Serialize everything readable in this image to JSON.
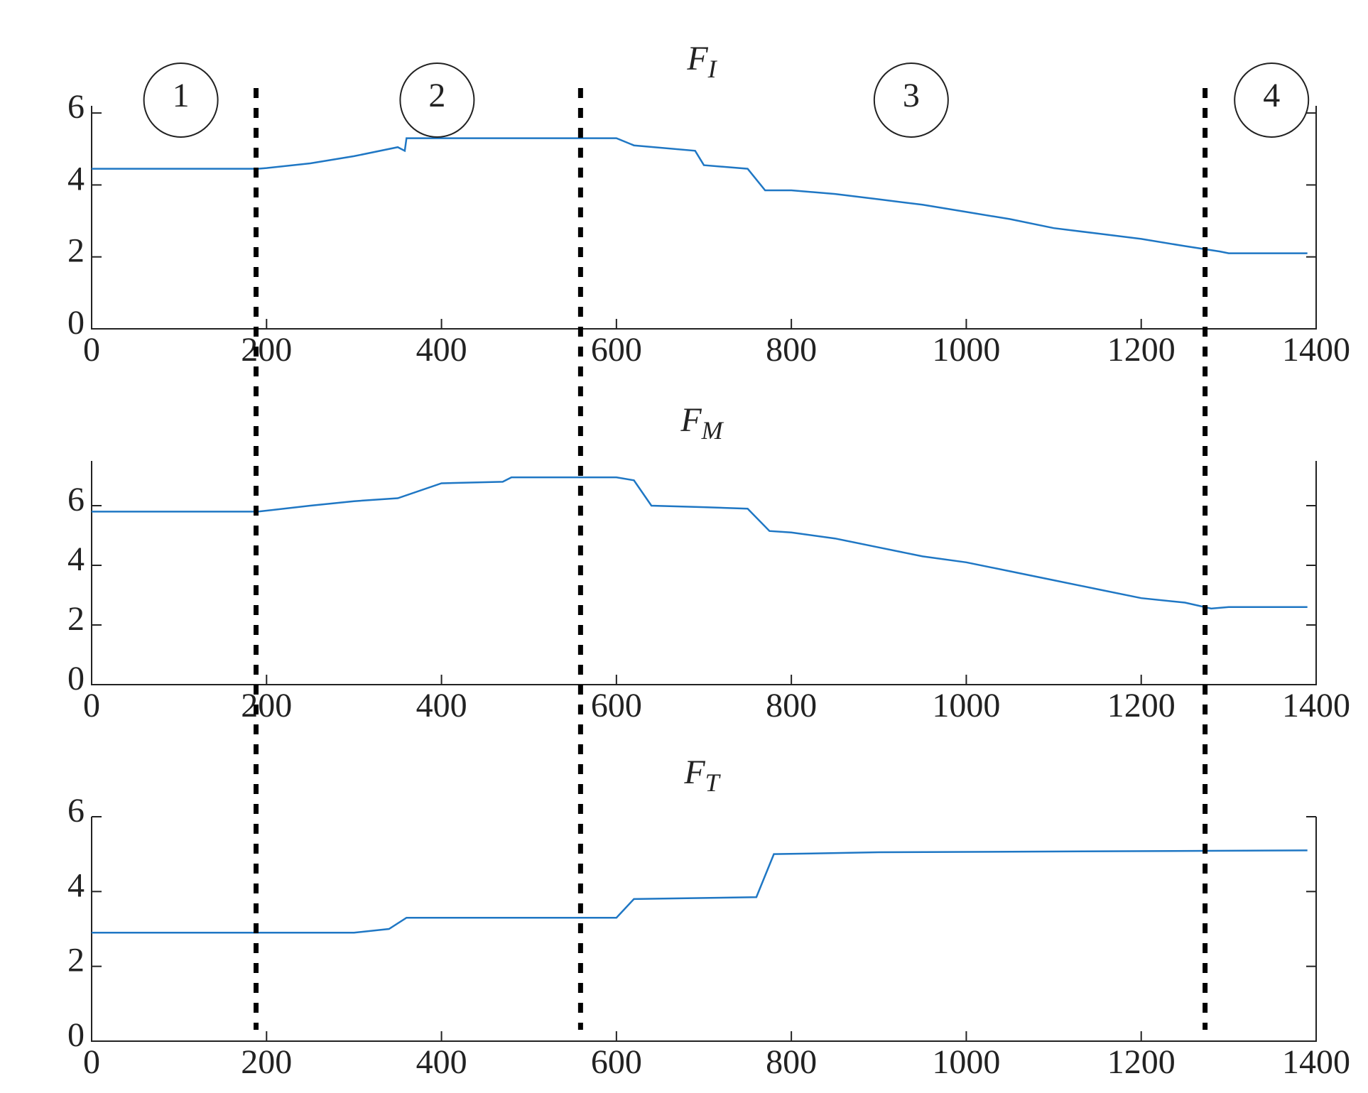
{
  "chart_data": [
    {
      "type": "line",
      "title": "F",
      "title_subscript": "I",
      "color": "#1f77c4",
      "x": [
        0,
        190,
        200,
        250,
        300,
        350,
        358,
        360,
        400,
        600,
        620,
        690,
        700,
        750,
        770,
        800,
        850,
        900,
        950,
        1000,
        1050,
        1100,
        1150,
        1200,
        1250,
        1290,
        1300,
        1390
      ],
      "values": [
        4.45,
        4.45,
        4.47,
        4.6,
        4.8,
        5.05,
        4.95,
        5.3,
        5.3,
        5.3,
        5.1,
        4.95,
        4.55,
        4.45,
        3.85,
        3.85,
        3.75,
        3.6,
        3.45,
        3.25,
        3.05,
        2.8,
        2.65,
        2.5,
        2.3,
        2.15,
        2.1,
        2.1
      ],
      "xlim": [
        0,
        1400
      ],
      "ylim": [
        0,
        6.2
      ],
      "xticks": [
        0,
        200,
        400,
        600,
        800,
        1000,
        1200,
        1400
      ],
      "yticks": [
        0,
        2,
        4,
        6
      ]
    },
    {
      "type": "line",
      "title": "F",
      "title_subscript": "M",
      "color": "#1f77c4",
      "x": [
        0,
        190,
        250,
        300,
        350,
        400,
        470,
        480,
        600,
        620,
        640,
        700,
        750,
        775,
        800,
        850,
        900,
        950,
        1000,
        1050,
        1100,
        1150,
        1200,
        1250,
        1280,
        1300,
        1390
      ],
      "values": [
        5.8,
        5.8,
        6.0,
        6.15,
        6.25,
        6.75,
        6.8,
        6.95,
        6.95,
        6.85,
        6.0,
        5.95,
        5.9,
        5.15,
        5.1,
        4.9,
        4.6,
        4.3,
        4.1,
        3.8,
        3.5,
        3.2,
        2.9,
        2.75,
        2.55,
        2.6,
        2.6
      ],
      "xlim": [
        0,
        1400
      ],
      "ylim": [
        0,
        7.5
      ],
      "xticks": [
        0,
        200,
        400,
        600,
        800,
        1000,
        1200,
        1400
      ],
      "yticks": [
        0,
        2,
        4,
        6
      ]
    },
    {
      "type": "line",
      "title": "F",
      "title_subscript": "T",
      "color": "#1f77c4",
      "x": [
        0,
        300,
        340,
        360,
        600,
        620,
        760,
        780,
        900,
        1390
      ],
      "values": [
        2.9,
        2.9,
        3.0,
        3.3,
        3.3,
        3.8,
        3.85,
        5.0,
        5.05,
        5.1
      ],
      "xlim": [
        0,
        1400
      ],
      "ylim": [
        0,
        6
      ],
      "xticks": [
        0,
        200,
        400,
        600,
        800,
        1000,
        1200,
        1400
      ],
      "yticks": [
        0,
        2,
        4,
        6
      ]
    }
  ],
  "phases": {
    "labels": [
      {
        "label": "1",
        "x": 102
      },
      {
        "label": "2",
        "x": 395
      },
      {
        "label": "3",
        "x": 937
      },
      {
        "label": "4",
        "x": 1349
      }
    ],
    "boundaries": [
      188,
      559,
      1273
    ]
  }
}
